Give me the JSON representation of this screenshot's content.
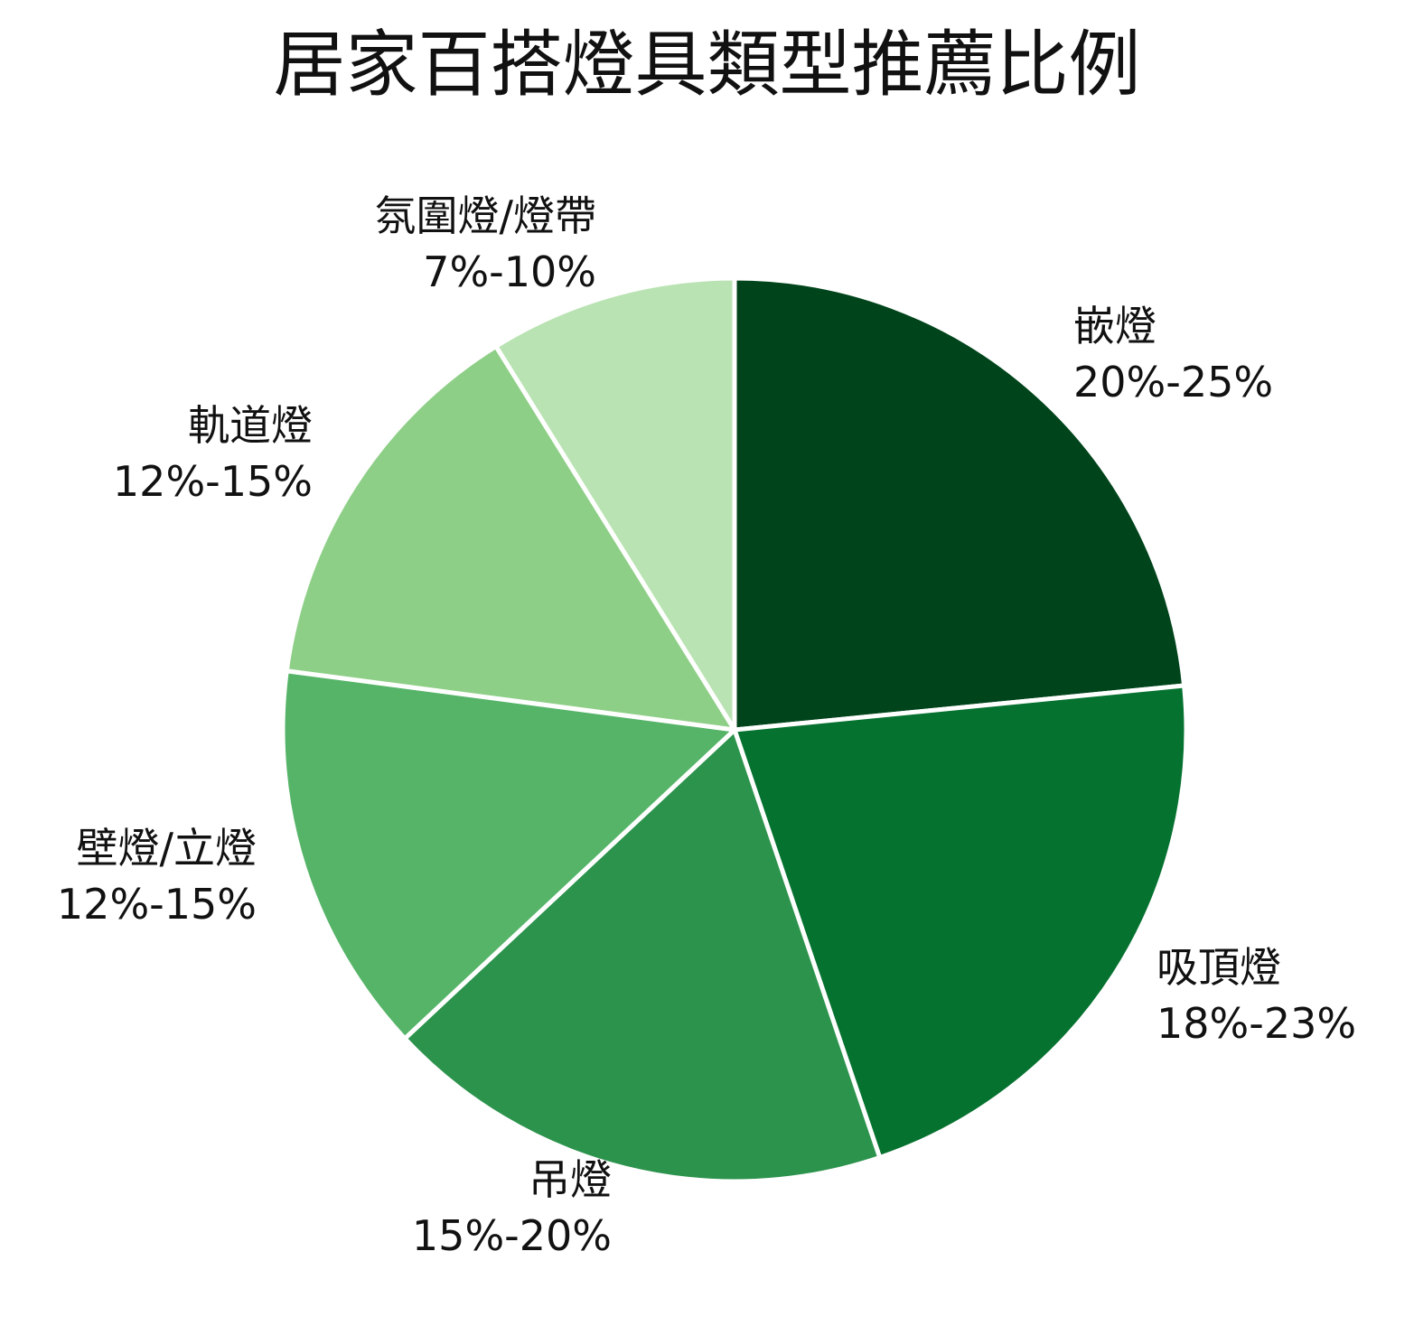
{
  "title": "居家百搭燈具類型推薦比例",
  "chart_data": {
    "type": "pie",
    "title": "居家百搭燈具類型推薦比例",
    "start_angle": "12 o'clock, clockwise",
    "categories": [
      "嵌燈",
      "吸頂燈",
      "吊燈",
      "壁燈/立燈",
      "軌道燈",
      "氛圍燈/燈帶"
    ],
    "labels": [
      "20%-25%",
      "18%-23%",
      "15%-20%",
      "12%-15%",
      "12%-15%",
      "7%-10%"
    ],
    "values": [
      22.5,
      20.5,
      17.5,
      13.5,
      13.5,
      8.5
    ],
    "colors": [
      "#00441b",
      "#067230",
      "#2c934c",
      "#56b468",
      "#8ecf87",
      "#b9e3b2"
    ],
    "legend": "none",
    "edge_color": "#ffffff"
  },
  "slices": [
    {
      "name": "嵌燈",
      "range": "20%-25%"
    },
    {
      "name": "吸頂燈",
      "range": "18%-23%"
    },
    {
      "name": "吊燈",
      "range": "15%-20%"
    },
    {
      "name": "壁燈/立燈",
      "range": "12%-15%"
    },
    {
      "name": "軌道燈",
      "range": "12%-15%"
    },
    {
      "name": "氛圍燈/燈帶",
      "range": "7%-10%"
    }
  ]
}
